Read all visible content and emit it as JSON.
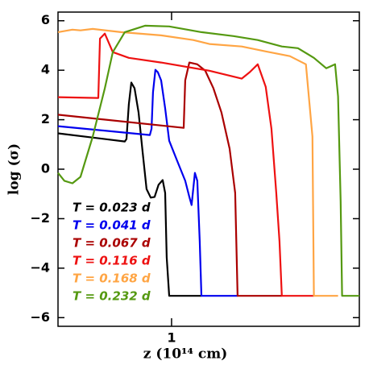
{
  "chart_data": {
    "type": "line",
    "xlabel": "z (10¹⁴ cm)",
    "ylabel": "log (σ)",
    "xscale": "log",
    "xlim": [
      0.54,
      2.77
    ],
    "xticks": [
      1
    ],
    "ylim": [
      -6.35,
      6.35
    ],
    "yticks": [
      {
        "value": -6,
        "label": "−6"
      },
      {
        "value": -4,
        "label": "−4"
      },
      {
        "value": -2,
        "label": "−2"
      },
      0,
      2,
      4,
      6
    ],
    "legend": "lower left",
    "series": [
      {
        "name": "T = 0.023 d",
        "color": "#000000",
        "x": [
          0.54,
          0.776,
          0.783,
          0.793,
          0.804,
          0.818,
          0.836,
          0.855,
          0.873,
          0.893,
          0.912,
          0.932,
          0.953,
          0.966,
          0.974,
          0.987,
          1.176
        ],
        "values": [
          1.45,
          1.12,
          1.22,
          2.62,
          3.5,
          3.27,
          2.29,
          0.67,
          -0.8,
          -1.15,
          -1.12,
          -0.63,
          -0.44,
          -0.96,
          -3.56,
          -5.12,
          -5.12
        ]
      },
      {
        "name": "T = 0.041 d",
        "color": "#0000ee",
        "x": [
          0.54,
          0.889,
          0.897,
          0.904,
          0.916,
          0.928,
          0.945,
          0.966,
          0.987,
          1.031,
          1.077,
          1.101,
          1.115,
          1.135,
          1.15,
          1.165,
          1.176,
          1.431
        ],
        "values": [
          1.74,
          1.38,
          1.64,
          3.11,
          4.02,
          3.92,
          3.59,
          2.46,
          1.15,
          0.34,
          -0.47,
          -1.12,
          -1.45,
          -0.15,
          -0.47,
          -2.91,
          -5.12,
          -5.12
        ]
      },
      {
        "name": "T = 0.067 d",
        "color": "#aa0000",
        "x": [
          0.54,
          1.068,
          1.077,
          1.101,
          1.15,
          1.201,
          1.255,
          1.311,
          1.37,
          1.412,
          1.431,
          1.819
        ],
        "values": [
          2.2,
          1.67,
          3.59,
          4.31,
          4.24,
          3.98,
          3.27,
          2.29,
          0.83,
          -0.96,
          -5.12,
          -5.12
        ]
      },
      {
        "name": "T = 0.116 d",
        "color": "#ee1111",
        "x": [
          0.54,
          0.672,
          0.678,
          0.696,
          0.727,
          0.793,
          0.945,
          1.228,
          1.463,
          1.528,
          1.596,
          1.667,
          1.719,
          1.765,
          1.796,
          1.819,
          2.165
        ],
        "values": [
          2.91,
          2.88,
          5.28,
          5.48,
          4.73,
          4.5,
          4.31,
          3.98,
          3.66,
          3.92,
          4.24,
          3.33,
          1.64,
          -0.96,
          -2.91,
          -5.12,
          -5.12
        ]
      },
      {
        "name": "T = 0.168 d",
        "color": "#ffa544",
        "x": [
          0.54,
          0.584,
          0.61,
          0.652,
          0.76,
          0.945,
          1.125,
          1.228,
          1.463,
          1.667,
          1.9,
          2.073,
          2.148,
          2.165,
          2.468
        ],
        "values": [
          5.54,
          5.64,
          5.61,
          5.67,
          5.54,
          5.41,
          5.22,
          5.06,
          4.96,
          4.76,
          4.57,
          4.24,
          1.32,
          -5.12,
          -5.12
        ]
      },
      {
        "name": "T = 0.232 d",
        "color": "#559911",
        "x": [
          0.54,
          0.559,
          0.584,
          0.61,
          0.652,
          0.696,
          0.727,
          0.776,
          0.866,
          0.987,
          1.176,
          1.4,
          1.596,
          1.819,
          1.985,
          2.165,
          2.314,
          2.386,
          2.428,
          2.468,
          2.503,
          2.523,
          2.77
        ],
        "values": [
          -0.15,
          -0.47,
          -0.57,
          -0.31,
          1.32,
          3.27,
          4.73,
          5.54,
          5.8,
          5.77,
          5.54,
          5.38,
          5.22,
          4.96,
          4.89,
          4.5,
          4.08,
          4.18,
          4.24,
          2.94,
          -1.28,
          -5.12,
          -5.12
        ]
      }
    ]
  }
}
